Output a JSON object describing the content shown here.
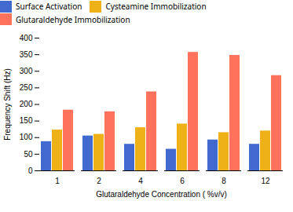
{
  "chart_data": {
    "type": "bar",
    "xlabel": "Glutaraldehyde Concentration ( %v/v)",
    "ylabel": "Frequency Shift (Hz)",
    "categories": [
      "1",
      "2",
      "4",
      "6",
      "8",
      "12"
    ],
    "series": [
      {
        "name": "Surface Activation",
        "values": [
          88,
          105,
          80,
          65,
          93,
          80
        ]
      },
      {
        "name": "Cysteamine Immobilization",
        "values": [
          123,
          110,
          130,
          141,
          115,
          120
        ]
      },
      {
        "name": "Glutaraldehyde Immobilization",
        "values": [
          183,
          178,
          238,
          357,
          348,
          287
        ]
      }
    ],
    "ylim": [
      0,
      400
    ],
    "yticks": [
      0,
      50,
      100,
      150,
      200,
      250,
      300,
      350,
      400
    ],
    "grid": false,
    "legend": "top"
  }
}
